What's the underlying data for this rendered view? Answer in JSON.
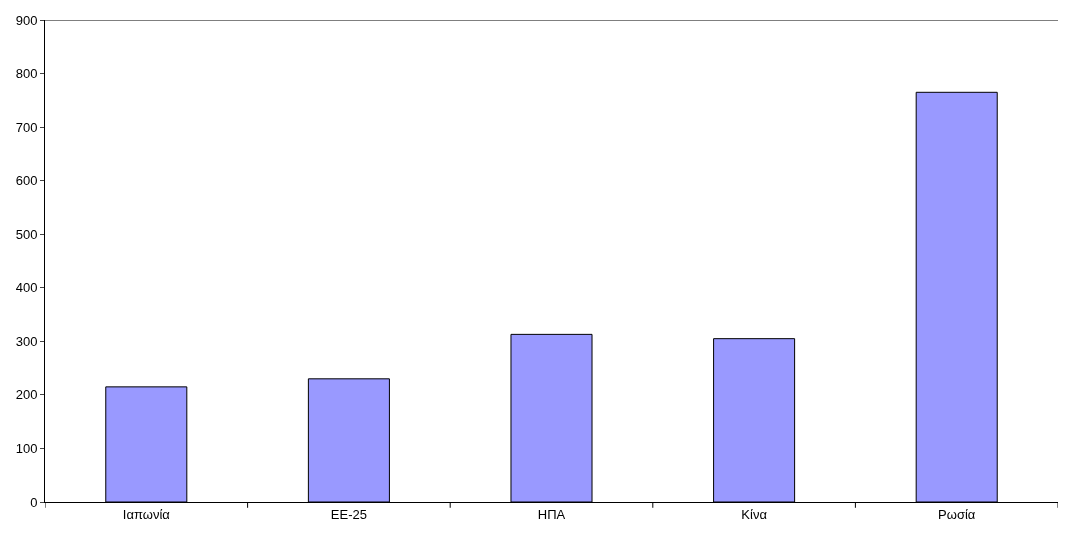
{
  "chart_data": {
    "type": "bar",
    "categories": [
      "Ιαπωνία",
      "ΕΕ-25",
      "ΗΠΑ",
      "Κίνα",
      "Ρωσία"
    ],
    "values": [
      215,
      230,
      313,
      305,
      765
    ],
    "color": "#9999ff",
    "ylim": [
      0,
      900
    ],
    "yticks": [
      0,
      100,
      200,
      300,
      400,
      500,
      600,
      700,
      800,
      900
    ]
  }
}
